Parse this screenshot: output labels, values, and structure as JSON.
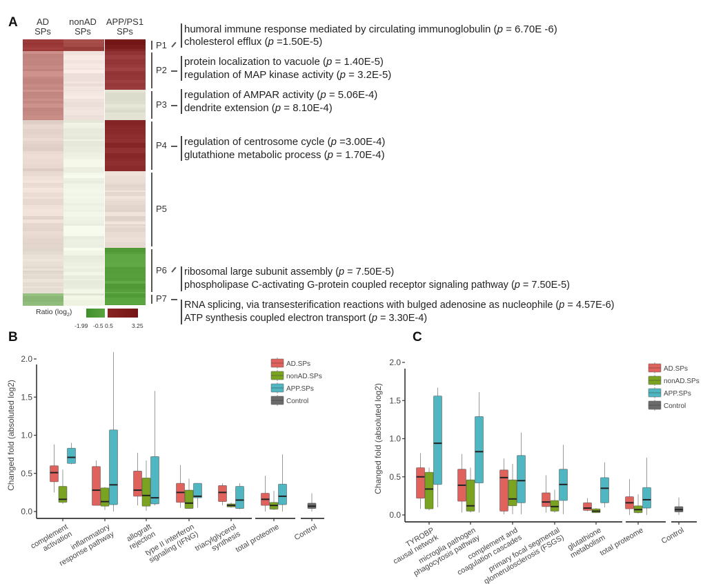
{
  "panels": {
    "a": "A",
    "b": "B",
    "c": "C"
  },
  "heatmap": {
    "columns": [
      "AD\nSPs",
      "nonAD\nSPs",
      "APP/PS1\nSPs"
    ],
    "column_labels": [
      [
        "AD",
        "SPs"
      ],
      [
        "nonAD",
        "SPs"
      ],
      [
        "APP/PS1",
        "SPs"
      ]
    ],
    "colors": {
      "high": "#7b1a1a",
      "mid": "#f2ece6",
      "low": "#3f8f2e"
    },
    "legend": {
      "title": "Ratio (log",
      "title_sub": "2",
      "title_end": ")",
      "ticks": [
        "-1.99",
        "-0.5",
        "0.5",
        "3.25"
      ]
    },
    "clusters": [
      {
        "label": "P1",
        "frac": [
          0,
          0.045
        ],
        "colors": [
          "#9b3a38",
          "#9e4542",
          "#7d1e1e"
        ],
        "terms": [
          {
            "name": "humoral immune response mediated by circulating immunoglobulin",
            "p": "6.70E -6",
            "p_sep": " = "
          },
          {
            "name": "cholesterol efflux",
            "p": "1.50E-5",
            "p_sep": " ="
          }
        ]
      },
      {
        "label": "P2",
        "frac": [
          0.045,
          0.19
        ],
        "colors": [
          "#c88a84",
          "#f3e4df",
          "#97383a"
        ],
        "terms": [
          {
            "name": "protein localization to vacuole",
            "p": "1.40E-5",
            "p_sep": " = "
          },
          {
            "name": "regulation of MAP kinase activity",
            "p": "3.2E-5",
            "p_sep": " = "
          }
        ]
      },
      {
        "label": "P3",
        "frac": [
          0.19,
          0.305
        ],
        "colors": [
          "#c68b85",
          "#f1e4de",
          "#dfe0d0"
        ],
        "terms": [
          {
            "name": "regulation of AMPAR activity",
            "p": "5.06E-4",
            "p_sep": " = "
          },
          {
            "name": "dendrite extension",
            "p": "8.10E-4",
            "p_sep": " = "
          }
        ]
      },
      {
        "label": "P4",
        "frac": [
          0.305,
          0.495
        ],
        "colors": [
          "#e5d5cc",
          "#eef0e2",
          "#8d2c2c"
        ],
        "terms": [
          {
            "name": "regulation of centrosome cycle",
            "p": "3.00E-4",
            "p_sep": " ="
          },
          {
            "name": "glutathione metabolic process",
            "p": "1.70E-4",
            "p_sep": " = "
          }
        ]
      },
      {
        "label": "P5",
        "frac": [
          0.495,
          0.785
        ],
        "colors": [
          "#ebdcd4",
          "#eff3e6",
          "#e9ddd3"
        ],
        "terms": []
      },
      {
        "label": "P6",
        "frac": [
          0.785,
          0.955
        ],
        "colors": [
          "#e6ddd2",
          "#eff3e4",
          "#59a23f"
        ],
        "terms": [
          {
            "name": "ribosomal large subunit assembly ",
            "p": "7.50E-5",
            "p_sep": " = "
          },
          {
            "name": "phospholipase C-activating G-protein coupled receptor signaling pathway",
            "p": "7.50E-5",
            "p_sep": " = "
          }
        ]
      },
      {
        "label": "P7",
        "frac": [
          0.955,
          1.0
        ],
        "colors": [
          "#8cb878",
          "#e8eedb",
          "#55a03b"
        ],
        "terms": [
          {
            "name": "RNA splicing, via transesterification reactions with bulged adenosine as nucleophile",
            "p": "4.57E-6",
            "p_sep": " = "
          },
          {
            "name": "ATP synthesis coupled electron transport",
            "p": "3.30E-4",
            "p_sep": " = "
          }
        ]
      }
    ]
  },
  "chart_data": [
    {
      "type": "boxplot",
      "panel": "B",
      "ylabel": "Changed fold (absoluted log2)",
      "ylim": [
        0,
        2.1
      ],
      "yticks": [
        "0.0",
        "0.5",
        "1.0",
        "1.5",
        "2.0"
      ],
      "series_names": [
        "AD.SPs",
        "nonAD.SPs",
        "APP.SPs",
        "Control"
      ],
      "series_colors": [
        "#e0625d",
        "#7aa321",
        "#4fb6c2",
        "#6b6b6b"
      ],
      "legend_position": "top-right",
      "categories": [
        "complement\nactivation",
        "inflammatory\nresponse pathway",
        "allograft\nrejection",
        "type II interferon\nsignaling (IFNG)",
        "triacylglycerol\nsynthesis",
        "total proteome",
        "Control"
      ],
      "groups": [
        {
          "category": "complement activation",
          "boxes": [
            {
              "series": "AD.SPs",
              "min": 0.25,
              "q1": 0.39,
              "median": 0.51,
              "q3": 0.6,
              "max": 0.88
            },
            {
              "series": "nonAD.SPs",
              "min": 0.1,
              "q1": 0.12,
              "median": 0.16,
              "q3": 0.33,
              "max": 0.55
            },
            {
              "series": "APP.SPs",
              "min": 0.62,
              "q1": 0.63,
              "median": 0.71,
              "q3": 0.83,
              "max": 0.9
            }
          ]
        },
        {
          "category": "inflammatory response pathway",
          "boxes": [
            {
              "series": "AD.SPs",
              "min": 0.08,
              "q1": 0.08,
              "median": 0.28,
              "q3": 0.59,
              "max": 0.67
            },
            {
              "series": "nonAD.SPs",
              "min": 0.02,
              "q1": 0.07,
              "median": 0.13,
              "q3": 0.31,
              "max": 0.32
            },
            {
              "series": "APP.SPs",
              "min": 0.0,
              "q1": 0.09,
              "median": 0.35,
              "q3": 1.07,
              "max": 2.09
            }
          ]
        },
        {
          "category": "allograft rejection",
          "boxes": [
            {
              "series": "AD.SPs",
              "min": 0.08,
              "q1": 0.2,
              "median": 0.28,
              "q3": 0.53,
              "max": 0.77
            },
            {
              "series": "nonAD.SPs",
              "min": 0.01,
              "q1": 0.07,
              "median": 0.21,
              "q3": 0.44,
              "max": 0.67
            },
            {
              "series": "APP.SPs",
              "min": 0.08,
              "q1": 0.1,
              "median": 0.18,
              "q3": 0.72,
              "max": 1.58
            }
          ]
        },
        {
          "category": "type II interferon signaling (IFNG)",
          "boxes": [
            {
              "series": "AD.SPs",
              "min": 0.05,
              "q1": 0.12,
              "median": 0.25,
              "q3": 0.37,
              "max": 0.61
            },
            {
              "series": "nonAD.SPs",
              "min": 0.04,
              "q1": 0.04,
              "median": 0.11,
              "q3": 0.28,
              "max": 0.43
            },
            {
              "series": "APP.SPs",
              "min": 0.05,
              "q1": 0.18,
              "median": 0.2,
              "q3": 0.37,
              "max": 0.37
            }
          ]
        },
        {
          "category": "triacylglycerol synthesis",
          "boxes": [
            {
              "series": "AD.SPs",
              "min": 0.08,
              "q1": 0.13,
              "median": 0.25,
              "q3": 0.34,
              "max": 0.37
            },
            {
              "series": "nonAD.SPs",
              "min": 0.05,
              "q1": 0.06,
              "median": 0.08,
              "q3": 0.1,
              "max": 0.12
            },
            {
              "series": "APP.SPs",
              "min": 0.03,
              "q1": 0.04,
              "median": 0.15,
              "q3": 0.33,
              "max": 0.37
            }
          ]
        },
        {
          "category": "total proteome",
          "boxes": [
            {
              "series": "AD.SPs",
              "min": 0.0,
              "q1": 0.08,
              "median": 0.16,
              "q3": 0.24,
              "max": 0.47
            },
            {
              "series": "nonAD.SPs",
              "min": 0.02,
              "q1": 0.03,
              "median": 0.08,
              "q3": 0.12,
              "max": 0.27
            },
            {
              "series": "APP.SPs",
              "min": 0.0,
              "q1": 0.09,
              "median": 0.2,
              "q3": 0.36,
              "max": 0.75
            }
          ]
        },
        {
          "category": "Control",
          "boxes": [
            {
              "series": "Control",
              "min": 0.0,
              "q1": 0.04,
              "median": 0.07,
              "q3": 0.11,
              "max": 0.24
            }
          ]
        }
      ]
    },
    {
      "type": "boxplot",
      "panel": "C",
      "ylabel": "Changed fold (absoluted log2)",
      "ylim": [
        0,
        2.1
      ],
      "yticks": [
        "0.0",
        "0.5",
        "1.0",
        "1.5",
        "2.0"
      ],
      "series_names": [
        "AD.SPs",
        "nonAD.SPs",
        "APP.SPs",
        "Control"
      ],
      "series_colors": [
        "#e0625d",
        "#7aa321",
        "#4fb6c2",
        "#6b6b6b"
      ],
      "legend_position": "top-right",
      "categories": [
        "TYROBP\ncausal network",
        "microglia pathogen\nphagocytosis pathway",
        "complement and\ncoagulation cascades",
        "primary focal segmental\nglomerulosclerosis (FSGS)",
        "glutathione\nmetabolism",
        "total proteome",
        "Control"
      ],
      "groups": [
        {
          "category": "TYROBP causal network",
          "boxes": [
            {
              "series": "AD.SPs",
              "min": 0.08,
              "q1": 0.22,
              "median": 0.5,
              "q3": 0.62,
              "max": 0.81
            },
            {
              "series": "nonAD.SPs",
              "min": 0.06,
              "q1": 0.08,
              "median": 0.34,
              "q3": 0.56,
              "max": 0.62
            },
            {
              "series": "APP.SPs",
              "min": 0.1,
              "q1": 0.4,
              "median": 0.94,
              "q3": 1.56,
              "max": 1.67
            }
          ]
        },
        {
          "category": "microglia pathogen phagocytosis pathway",
          "boxes": [
            {
              "series": "AD.SPs",
              "min": 0.03,
              "q1": 0.18,
              "median": 0.39,
              "q3": 0.6,
              "max": 0.8
            },
            {
              "series": "nonAD.SPs",
              "min": 0.03,
              "q1": 0.05,
              "median": 0.12,
              "q3": 0.46,
              "max": 0.62
            },
            {
              "series": "APP.SPs",
              "min": 0.03,
              "q1": 0.42,
              "median": 0.83,
              "q3": 1.29,
              "max": 1.61
            }
          ]
        },
        {
          "category": "complement and coagulation cascades",
          "boxes": [
            {
              "series": "AD.SPs",
              "min": 0.01,
              "q1": 0.05,
              "median": 0.49,
              "q3": 0.59,
              "max": 0.74
            },
            {
              "series": "nonAD.SPs",
              "min": 0.01,
              "q1": 0.12,
              "median": 0.21,
              "q3": 0.46,
              "max": 0.67
            },
            {
              "series": "APP.SPs",
              "min": 0.01,
              "q1": 0.16,
              "median": 0.45,
              "q3": 0.78,
              "max": 1.08
            }
          ]
        },
        {
          "category": "primary focal segmental glomerulosclerosis (FSGS)",
          "boxes": [
            {
              "series": "AD.SPs",
              "min": 0.03,
              "q1": 0.11,
              "median": 0.17,
              "q3": 0.29,
              "max": 0.52
            },
            {
              "series": "nonAD.SPs",
              "min": 0.03,
              "q1": 0.05,
              "median": 0.11,
              "q3": 0.19,
              "max": 0.33
            },
            {
              "series": "APP.SPs",
              "min": 0.01,
              "q1": 0.19,
              "median": 0.4,
              "q3": 0.6,
              "max": 0.92
            }
          ]
        },
        {
          "category": "glutathione metabolism",
          "boxes": [
            {
              "series": "AD.SPs",
              "min": 0.05,
              "q1": 0.06,
              "median": 0.09,
              "q3": 0.16,
              "max": 0.22
            },
            {
              "series": "nonAD.SPs",
              "min": 0.03,
              "q1": 0.03,
              "median": 0.05,
              "q3": 0.08,
              "max": 0.09
            },
            {
              "series": "APP.SPs",
              "min": 0.1,
              "q1": 0.16,
              "median": 0.35,
              "q3": 0.49,
              "max": 0.69
            }
          ]
        },
        {
          "category": "total proteome",
          "boxes": [
            {
              "series": "AD.SPs",
              "min": 0.0,
              "q1": 0.08,
              "median": 0.16,
              "q3": 0.24,
              "max": 0.47
            },
            {
              "series": "nonAD.SPs",
              "min": 0.02,
              "q1": 0.03,
              "median": 0.07,
              "q3": 0.12,
              "max": 0.27
            },
            {
              "series": "APP.SPs",
              "min": 0.0,
              "q1": 0.09,
              "median": 0.2,
              "q3": 0.36,
              "max": 0.75
            }
          ]
        },
        {
          "category": "Control",
          "boxes": [
            {
              "series": "Control",
              "min": 0.0,
              "q1": 0.04,
              "median": 0.07,
              "q3": 0.11,
              "max": 0.23
            }
          ]
        }
      ]
    }
  ]
}
